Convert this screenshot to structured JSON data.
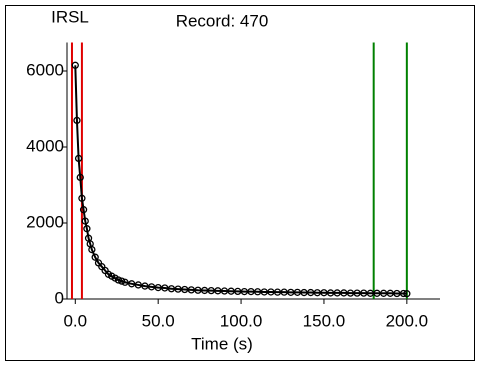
{
  "chart_data": {
    "type": "line",
    "title": "Record: 470",
    "subtitle": "IRSL",
    "xlabel": "Time (s)",
    "x": [
      0,
      1,
      2,
      3,
      4,
      5,
      6,
      7,
      8,
      9,
      10,
      12,
      14,
      16,
      18,
      20,
      22,
      24,
      26,
      28,
      30,
      34,
      38,
      42,
      46,
      50,
      54,
      58,
      62,
      66,
      70,
      74,
      78,
      82,
      86,
      90,
      94,
      98,
      102,
      106,
      110,
      114,
      118,
      122,
      126,
      130,
      134,
      138,
      142,
      146,
      150,
      154,
      158,
      162,
      166,
      170,
      174,
      178,
      182,
      186,
      190,
      194,
      198,
      200
    ],
    "series": [
      {
        "color": "#000000",
        "values": [
          6150,
          4700,
          3700,
          3200,
          2650,
          2350,
          2050,
          1850,
          1600,
          1450,
          1300,
          1100,
          950,
          850,
          750,
          650,
          600,
          550,
          500,
          470,
          440,
          400,
          370,
          340,
          320,
          300,
          290,
          270,
          260,
          250,
          240,
          230,
          225,
          220,
          215,
          210,
          205,
          200,
          195,
          195,
          190,
          185,
          185,
          180,
          180,
          175,
          175,
          170,
          170,
          165,
          165,
          160,
          160,
          160,
          155,
          155,
          155,
          150,
          150,
          150,
          150,
          145,
          145,
          140
        ]
      }
    ],
    "vlines": [
      {
        "x": -2,
        "color": "#e00000"
      },
      {
        "x": 4,
        "color": "#e00000"
      },
      {
        "x": 180,
        "color": "#008000"
      },
      {
        "x": 200,
        "color": "#008000"
      }
    ],
    "xlim": [
      -5,
      220
    ],
    "ylim": [
      0,
      6750
    ],
    "xticks": [
      {
        "value": 0,
        "label": "0.0"
      },
      {
        "value": 50,
        "label": "50.0"
      },
      {
        "value": 100,
        "label": "100.0"
      },
      {
        "value": 150,
        "label": "150.0"
      },
      {
        "value": 200,
        "label": "200.0"
      }
    ],
    "yticks": [
      0,
      2000,
      4000,
      6000
    ]
  }
}
